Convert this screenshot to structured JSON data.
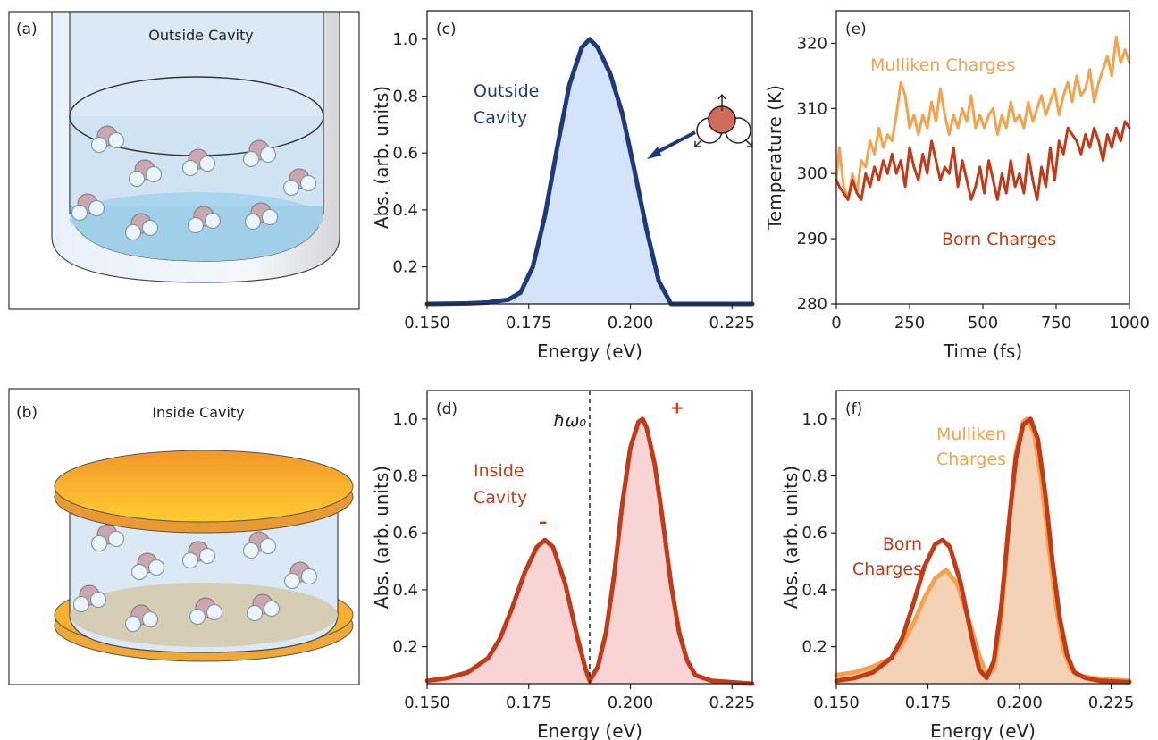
{
  "colors": {
    "navy": "#1f3a7a",
    "navy_fill": "#cfe0f7",
    "red": "#c33a17",
    "red_fill": "#f8cfcf",
    "orange": "#f6a24a",
    "orange_fill": "#f3cdb0"
  },
  "panels": {
    "a": {
      "letter": "(a)",
      "caption": "Outside Cavity"
    },
    "b": {
      "letter": "(b)",
      "caption": "Inside Cavity"
    }
  },
  "chart_data": [
    {
      "id": "c",
      "type": "area",
      "letter": "(c)",
      "xlabel": "Energy (eV)",
      "ylabel": "Abs. (arb. units)",
      "xlim": [
        0.15,
        0.23
      ],
      "ylim": [
        0.07,
        1.1
      ],
      "xticks": [
        "0.150",
        "0.175",
        "0.200",
        "0.225"
      ],
      "xtick_values": [
        0.15,
        0.175,
        0.2,
        0.225
      ],
      "yticks": [
        "0.2",
        "0.4",
        "0.6",
        "0.8",
        "1.0"
      ],
      "ytick_values": [
        0.2,
        0.4,
        0.6,
        0.8,
        1.0
      ],
      "annotation": [
        "Outside",
        "Cavity"
      ],
      "series": [
        {
          "color": "#1f3a7a",
          "fill": "#cfe0f7",
          "x": [
            0.15,
            0.16,
            0.165,
            0.17,
            0.173,
            0.176,
            0.179,
            0.182,
            0.185,
            0.188,
            0.19,
            0.192,
            0.195,
            0.198,
            0.201,
            0.204,
            0.207,
            0.21,
            0.215,
            0.23
          ],
          "y": [
            0.07,
            0.072,
            0.075,
            0.085,
            0.11,
            0.2,
            0.38,
            0.62,
            0.84,
            0.97,
            1.0,
            0.97,
            0.88,
            0.74,
            0.54,
            0.33,
            0.15,
            0.07,
            0.07,
            0.07
          ]
        }
      ]
    },
    {
      "id": "d",
      "type": "area",
      "letter": "(d)",
      "xlabel": "Energy (eV)",
      "ylabel": "Abs. (arb. units)",
      "xlim": [
        0.15,
        0.23
      ],
      "ylim": [
        0.07,
        1.1
      ],
      "xticks": [
        "0.150",
        "0.175",
        "0.200",
        "0.225"
      ],
      "xtick_values": [
        0.15,
        0.175,
        0.2,
        0.225
      ],
      "yticks": [
        "0.2",
        "0.4",
        "0.6",
        "0.8",
        "1.0"
      ],
      "ytick_values": [
        0.2,
        0.4,
        0.6,
        0.8,
        1.0
      ],
      "annotation": [
        "Inside",
        "Cavity"
      ],
      "vline": 0.19,
      "vline_label": "ħω₀",
      "minus_label": "–",
      "plus_label": "+",
      "series": [
        {
          "color": "#c33a17",
          "fill": "#f8cfcf",
          "x": [
            0.15,
            0.155,
            0.16,
            0.165,
            0.168,
            0.171,
            0.174,
            0.177,
            0.179,
            0.181,
            0.184,
            0.187,
            0.189,
            0.19,
            0.192,
            0.194,
            0.196,
            0.198,
            0.2,
            0.202,
            0.203,
            0.204,
            0.206,
            0.208,
            0.21,
            0.212,
            0.214,
            0.216,
            0.22,
            0.225,
            0.23
          ],
          "y": [
            0.08,
            0.09,
            0.11,
            0.16,
            0.23,
            0.34,
            0.46,
            0.55,
            0.575,
            0.55,
            0.42,
            0.23,
            0.12,
            0.08,
            0.13,
            0.25,
            0.45,
            0.7,
            0.9,
            0.99,
            1.0,
            0.97,
            0.84,
            0.64,
            0.42,
            0.25,
            0.15,
            0.1,
            0.08,
            0.075,
            0.07
          ]
        }
      ]
    },
    {
      "id": "e",
      "type": "line",
      "letter": "(e)",
      "xlabel": "Time (fs)",
      "ylabel": "Temperature (K)",
      "xlim": [
        0,
        1000
      ],
      "ylim": [
        280,
        325
      ],
      "xticks": [
        "0",
        "250",
        "500",
        "750",
        "1000"
      ],
      "xtick_values": [
        0,
        250,
        500,
        750,
        1000
      ],
      "yticks": [
        "280",
        "290",
        "300",
        "310",
        "320"
      ],
      "ytick_values": [
        280,
        290,
        300,
        310,
        320
      ],
      "series": [
        {
          "name": "Mulliken Charges",
          "color": "#f6a24a",
          "x": [
            0,
            10,
            25,
            40,
            55,
            70,
            85,
            100,
            115,
            130,
            145,
            160,
            175,
            190,
            205,
            220,
            235,
            250,
            265,
            280,
            295,
            310,
            325,
            340,
            355,
            370,
            385,
            400,
            415,
            430,
            445,
            460,
            475,
            490,
            505,
            520,
            535,
            550,
            565,
            580,
            595,
            610,
            625,
            640,
            655,
            670,
            685,
            700,
            715,
            730,
            745,
            760,
            775,
            790,
            805,
            820,
            835,
            850,
            865,
            880,
            895,
            910,
            925,
            940,
            955,
            970,
            985,
            1000
          ],
          "y": [
            299,
            304,
            298,
            296,
            300,
            297,
            302,
            301,
            305,
            303,
            307,
            304,
            306,
            305,
            309,
            314,
            312,
            307,
            309,
            306,
            309,
            307,
            311,
            308,
            313,
            309,
            306,
            309,
            307,
            310,
            308,
            312,
            307,
            309,
            307,
            309,
            310,
            306,
            309,
            307,
            311,
            308,
            309,
            307,
            311,
            308,
            310,
            312,
            309,
            311,
            313,
            309,
            312,
            314,
            311,
            315,
            312,
            313,
            316,
            311,
            314,
            316,
            318,
            315,
            321,
            317,
            319,
            317
          ]
        },
        {
          "name": "Born Charges",
          "color": "#c33a17",
          "x": [
            0,
            10,
            25,
            40,
            55,
            70,
            85,
            100,
            115,
            130,
            145,
            160,
            175,
            190,
            205,
            220,
            235,
            250,
            265,
            280,
            295,
            310,
            325,
            340,
            355,
            370,
            385,
            400,
            415,
            430,
            445,
            460,
            475,
            490,
            505,
            520,
            535,
            550,
            565,
            580,
            595,
            610,
            625,
            640,
            655,
            670,
            685,
            700,
            715,
            730,
            745,
            760,
            775,
            790,
            805,
            820,
            835,
            850,
            865,
            880,
            895,
            910,
            925,
            940,
            955,
            970,
            985,
            1000
          ],
          "y": [
            299,
            298,
            297,
            296,
            299,
            297,
            296,
            300,
            298,
            301,
            299,
            302,
            300,
            303,
            300,
            302,
            298,
            304,
            301,
            299,
            303,
            300,
            305,
            302,
            299,
            301,
            300,
            304,
            298,
            302,
            299,
            296,
            298,
            301,
            297,
            302,
            299,
            296,
            300,
            297,
            302,
            298,
            300,
            297,
            303,
            299,
            296,
            301,
            298,
            304,
            299,
            305,
            303,
            307,
            306,
            305,
            303,
            306,
            304,
            307,
            305,
            302,
            306,
            304,
            307,
            305,
            308,
            307
          ]
        }
      ]
    },
    {
      "id": "f",
      "type": "area",
      "letter": "(f)",
      "xlabel": "Energy (eV)",
      "ylabel": "Abs. (arb. units)",
      "xlim": [
        0.15,
        0.23
      ],
      "ylim": [
        0.07,
        1.1
      ],
      "xticks": [
        "0.150",
        "0.175",
        "0.200",
        "0.225"
      ],
      "xtick_values": [
        0.15,
        0.175,
        0.2,
        0.225
      ],
      "yticks": [
        "0.2",
        "0.4",
        "0.6",
        "0.8",
        "1.0"
      ],
      "ytick_values": [
        0.2,
        0.4,
        0.6,
        0.8,
        1.0
      ],
      "labels": [
        {
          "lines": [
            "Born",
            "Charges"
          ],
          "color": "#c33a17"
        },
        {
          "lines": [
            "Mulliken",
            "Charges"
          ],
          "color": "#f6a24a"
        }
      ],
      "series": [
        {
          "color": "#f6a24a",
          "fill": "#f3cdb0",
          "x": [
            0.15,
            0.155,
            0.16,
            0.165,
            0.168,
            0.171,
            0.174,
            0.177,
            0.18,
            0.183,
            0.186,
            0.189,
            0.191,
            0.193,
            0.195,
            0.197,
            0.199,
            0.201,
            0.202,
            0.204,
            0.206,
            0.208,
            0.21,
            0.212,
            0.214,
            0.216,
            0.22,
            0.225,
            0.23
          ],
          "y": [
            0.1,
            0.11,
            0.13,
            0.16,
            0.21,
            0.28,
            0.37,
            0.44,
            0.47,
            0.42,
            0.3,
            0.17,
            0.1,
            0.12,
            0.3,
            0.62,
            0.88,
            0.99,
            1.0,
            0.95,
            0.78,
            0.55,
            0.34,
            0.19,
            0.12,
            0.1,
            0.09,
            0.085,
            0.08
          ]
        },
        {
          "color": "#c33a17",
          "fill": "none",
          "x": [
            0.15,
            0.155,
            0.16,
            0.165,
            0.168,
            0.171,
            0.174,
            0.177,
            0.179,
            0.181,
            0.184,
            0.187,
            0.189,
            0.191,
            0.193,
            0.195,
            0.197,
            0.199,
            0.201,
            0.203,
            0.205,
            0.207,
            0.209,
            0.211,
            0.213,
            0.215,
            0.218,
            0.222,
            0.23
          ],
          "y": [
            0.08,
            0.09,
            0.11,
            0.16,
            0.23,
            0.35,
            0.48,
            0.56,
            0.575,
            0.55,
            0.42,
            0.23,
            0.12,
            0.09,
            0.15,
            0.34,
            0.62,
            0.86,
            0.98,
            1.0,
            0.93,
            0.74,
            0.5,
            0.3,
            0.17,
            0.11,
            0.09,
            0.08,
            0.075
          ]
        }
      ]
    }
  ]
}
